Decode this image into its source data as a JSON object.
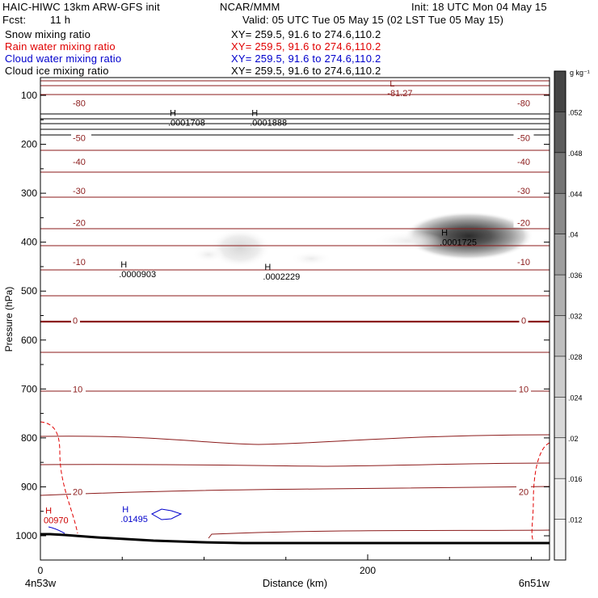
{
  "header": {
    "title_left": "HAIC-HIWC 13km ARW-GFS init",
    "org": "NCAR/MMM",
    "init": "Init: 18 UTC Mon 04 May 15",
    "fcst_label": "Fcst:",
    "fcst_value": "11 h",
    "valid": "Valid: 05 UTC Tue 05 May 15 (02 LST Tue 05 May 15)",
    "fields": [
      {
        "name": "Snow mixing ratio",
        "xy": "XY= 259.5, 91.6 to 274.6,110.2",
        "color": "#000000"
      },
      {
        "name": "Rain water mixing ratio",
        "xy": "XY= 259.5, 91.6 to 274.6,110.2",
        "color": "#e00000"
      },
      {
        "name": "Cloud water mixing ratio",
        "xy": "XY= 259.5, 91.6 to 274.6,110.2",
        "color": "#0000cc"
      },
      {
        "name": "Cloud ice mixing ratio",
        "xy": "XY= 259.5, 91.6 to 274.6,110.2",
        "color": "#000000"
      }
    ]
  },
  "chart_data": {
    "type": "cross-section",
    "xlabel": "Distance (km)",
    "ylabel": "Pressure (hPa)",
    "xlim": [
      0,
      300
    ],
    "ylim": [
      1050,
      30
    ],
    "x_ticks": [
      0,
      200
    ],
    "y_ticks": [
      100,
      200,
      300,
      400,
      500,
      600,
      700,
      800,
      900,
      1000
    ],
    "x_endpoints": {
      "left": "4n53w",
      "right": "6n51w"
    },
    "colorbar": {
      "unit": "g kg⁻¹",
      "levels": [
        ".012",
        ".016",
        ".02",
        ".024",
        ".028",
        ".032",
        ".036",
        ".04",
        ".044",
        ".048",
        ".052"
      ],
      "colors": [
        "#f6f6f6",
        "#eeeeee",
        "#e4e4e4",
        "#d8d8d8",
        "#cccccc",
        "#bebebe",
        "#b0b0b0",
        "#9e9e9e",
        "#8a8a8a",
        "#747474",
        "#5c5c5c",
        "#444444"
      ]
    },
    "temperature_contours": {
      "color": "#8b1a1a",
      "labels": [
        {
          "value": "-80",
          "p": 116
        },
        {
          "value": "-50",
          "p": 187
        },
        {
          "value": "-40",
          "p": 235
        },
        {
          "value": "-30",
          "p": 295
        },
        {
          "value": "-20",
          "p": 360
        },
        {
          "value": "-10",
          "p": 440
        },
        {
          "value": "0",
          "p": 560
        },
        {
          "value": "10",
          "p": 700
        },
        {
          "value": "20",
          "p": 910
        }
      ]
    },
    "extrema": [
      {
        "label": "L",
        "value": "-81.27",
        "x": 212,
        "p": 95,
        "color": "#8b1a1a"
      },
      {
        "label": "H",
        "value": ".0001708",
        "x": 78,
        "p": 155,
        "color": "#000000"
      },
      {
        "label": "H",
        "value": ".0001888",
        "x": 128,
        "p": 155,
        "color": "#000000"
      },
      {
        "label": "H",
        "value": ".0001725",
        "x": 244,
        "p": 400,
        "color": "#000000"
      },
      {
        "label": "H",
        "value": ".0000903",
        "x": 48,
        "p": 465,
        "color": "#000000"
      },
      {
        "label": "H",
        "value": ".0002229",
        "x": 136,
        "p": 470,
        "color": "#000000"
      },
      {
        "label": "H",
        "value": "00970",
        "x": 2,
        "p": 968,
        "color": "#cc0000"
      },
      {
        "label": "H",
        "value": ".01495",
        "x": 49,
        "p": 965,
        "color": "#0000cc"
      }
    ]
  }
}
